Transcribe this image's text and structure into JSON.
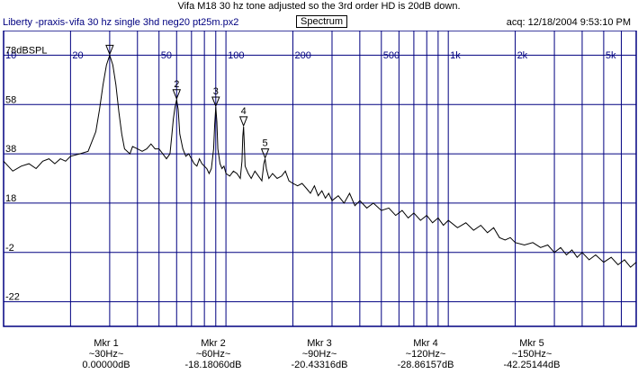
{
  "title": "Vifa M18 30 hz tone adjusted so the 3rd order HD is 20dB down.",
  "header": {
    "app_name": "Liberty -praxis-",
    "file_name": "vifa 30 hz single 3hd neg20 pt25m.px2",
    "view_button": "Spectrum",
    "acq": "acq: 12/18/2004 9:53:10 PM"
  },
  "chart_data": {
    "type": "line",
    "x_scale": "log",
    "xlim": [
      10,
      7000
    ],
    "ylim": [
      -32,
      88
    ],
    "x_ticks": [
      {
        "value": 10,
        "label": "10"
      },
      {
        "value": 20,
        "label": "20"
      },
      {
        "value": 50,
        "label": "50"
      },
      {
        "value": 100,
        "label": "100"
      },
      {
        "value": 200,
        "label": "200"
      },
      {
        "value": 500,
        "label": "500"
      },
      {
        "value": 1000,
        "label": "1k"
      },
      {
        "value": 2000,
        "label": "2k"
      },
      {
        "value": 5000,
        "label": "5k"
      }
    ],
    "x_gridlines": [
      30,
      40,
      60,
      70,
      80,
      90,
      300,
      400,
      600,
      700,
      800,
      900,
      3000,
      4000,
      6000,
      7000
    ],
    "y_ticks": [
      {
        "value": 78,
        "label": "78dBSPL"
      },
      {
        "value": 58,
        "label": "58"
      },
      {
        "value": 38,
        "label": "38"
      },
      {
        "value": 18,
        "label": "18"
      },
      {
        "value": -2,
        "label": "-2"
      },
      {
        "value": -22,
        "label": "-22"
      }
    ],
    "series": [
      {
        "points": [
          [
            10,
            35
          ],
          [
            11,
            31
          ],
          [
            12,
            33
          ],
          [
            13,
            34
          ],
          [
            14,
            32
          ],
          [
            15,
            35
          ],
          [
            16,
            36
          ],
          [
            17,
            34
          ],
          [
            18,
            36
          ],
          [
            19,
            35
          ],
          [
            20,
            37
          ],
          [
            22,
            38
          ],
          [
            24,
            39
          ],
          [
            26,
            47
          ],
          [
            27,
            56
          ],
          [
            28,
            66
          ],
          [
            29,
            74
          ],
          [
            30,
            78
          ],
          [
            31,
            74
          ],
          [
            32,
            66
          ],
          [
            33,
            55
          ],
          [
            34,
            46
          ],
          [
            35,
            40
          ],
          [
            37,
            38
          ],
          [
            38,
            41
          ],
          [
            40,
            40
          ],
          [
            42,
            39
          ],
          [
            44,
            40
          ],
          [
            45,
            41
          ],
          [
            46,
            42
          ],
          [
            48,
            40
          ],
          [
            50,
            40
          ],
          [
            52,
            38
          ],
          [
            54,
            36
          ],
          [
            56,
            38
          ],
          [
            57,
            45
          ],
          [
            58,
            52
          ],
          [
            59,
            57
          ],
          [
            60,
            60
          ],
          [
            61,
            56
          ],
          [
            62,
            46
          ],
          [
            64,
            40
          ],
          [
            66,
            37
          ],
          [
            68,
            38
          ],
          [
            70,
            36
          ],
          [
            72,
            34
          ],
          [
            74,
            33
          ],
          [
            76,
            36
          ],
          [
            78,
            34
          ],
          [
            80,
            33
          ],
          [
            82,
            32
          ],
          [
            84,
            30
          ],
          [
            86,
            32
          ],
          [
            88,
            40
          ],
          [
            89,
            50
          ],
          [
            90,
            57
          ],
          [
            91,
            51
          ],
          [
            92,
            40
          ],
          [
            94,
            34
          ],
          [
            96,
            32
          ],
          [
            98,
            33
          ],
          [
            100,
            30
          ],
          [
            104,
            29
          ],
          [
            108,
            31
          ],
          [
            112,
            30
          ],
          [
            116,
            28
          ],
          [
            118,
            35
          ],
          [
            119,
            45
          ],
          [
            120,
            49
          ],
          [
            121,
            42
          ],
          [
            122,
            33
          ],
          [
            126,
            30
          ],
          [
            130,
            28
          ],
          [
            135,
            31
          ],
          [
            140,
            29
          ],
          [
            145,
            27
          ],
          [
            148,
            34
          ],
          [
            150,
            36
          ],
          [
            152,
            32
          ],
          [
            156,
            28
          ],
          [
            162,
            30
          ],
          [
            170,
            28
          ],
          [
            178,
            29
          ],
          [
            185,
            31
          ],
          [
            192,
            27
          ],
          [
            200,
            26
          ],
          [
            210,
            25
          ],
          [
            220,
            26
          ],
          [
            230,
            24
          ],
          [
            240,
            22
          ],
          [
            250,
            25
          ],
          [
            260,
            21
          ],
          [
            270,
            23
          ],
          [
            280,
            20
          ],
          [
            290,
            22
          ],
          [
            300,
            19
          ],
          [
            320,
            21
          ],
          [
            340,
            18
          ],
          [
            360,
            22
          ],
          [
            380,
            17
          ],
          [
            400,
            19
          ],
          [
            430,
            16
          ],
          [
            460,
            18
          ],
          [
            500,
            15
          ],
          [
            540,
            16
          ],
          [
            580,
            13
          ],
          [
            620,
            15
          ],
          [
            660,
            12
          ],
          [
            700,
            14
          ],
          [
            750,
            11
          ],
          [
            800,
            13
          ],
          [
            850,
            10
          ],
          [
            900,
            12
          ],
          [
            950,
            9
          ],
          [
            1000,
            11
          ],
          [
            1100,
            8
          ],
          [
            1200,
            10
          ],
          [
            1300,
            7
          ],
          [
            1400,
            9
          ],
          [
            1500,
            6
          ],
          [
            1600,
            8
          ],
          [
            1700,
            4
          ],
          [
            1800,
            3
          ],
          [
            1900,
            4
          ],
          [
            2000,
            2
          ],
          [
            2200,
            1
          ],
          [
            2400,
            2
          ],
          [
            2600,
            0
          ],
          [
            2800,
            1
          ],
          [
            3000,
            -2
          ],
          [
            3200,
            0
          ],
          [
            3400,
            -3
          ],
          [
            3600,
            -1
          ],
          [
            3800,
            -4
          ],
          [
            4000,
            -2
          ],
          [
            4300,
            -5
          ],
          [
            4600,
            -3
          ],
          [
            5000,
            -6
          ],
          [
            5400,
            -4
          ],
          [
            5800,
            -7
          ],
          [
            6200,
            -5
          ],
          [
            6600,
            -8
          ],
          [
            7000,
            -6
          ]
        ]
      }
    ],
    "markers": [
      {
        "label": "",
        "freq": 30,
        "level": 78
      },
      {
        "label": "2",
        "freq": 60,
        "level": 60
      },
      {
        "label": "3",
        "freq": 90,
        "level": 57
      },
      {
        "label": "4",
        "freq": 120,
        "level": 49
      },
      {
        "label": "5",
        "freq": 150,
        "level": 36
      }
    ],
    "colors": {
      "grid": "#000080",
      "trace": "#000000",
      "labels": "#000080"
    }
  },
  "markers": [
    {
      "name": "Mkr 1",
      "freq": "~30Hz~",
      "value": "0.00000dB"
    },
    {
      "name": "Mkr 2",
      "freq": "~60Hz~",
      "value": "-18.18060dB"
    },
    {
      "name": "Mkr 3",
      "freq": "~90Hz~",
      "value": "-20.43316dB"
    },
    {
      "name": "Mkr 4",
      "freq": "~120Hz~",
      "value": "-28.86157dB"
    },
    {
      "name": "Mkr 5",
      "freq": "~150Hz~",
      "value": "-42.25144dB"
    }
  ]
}
